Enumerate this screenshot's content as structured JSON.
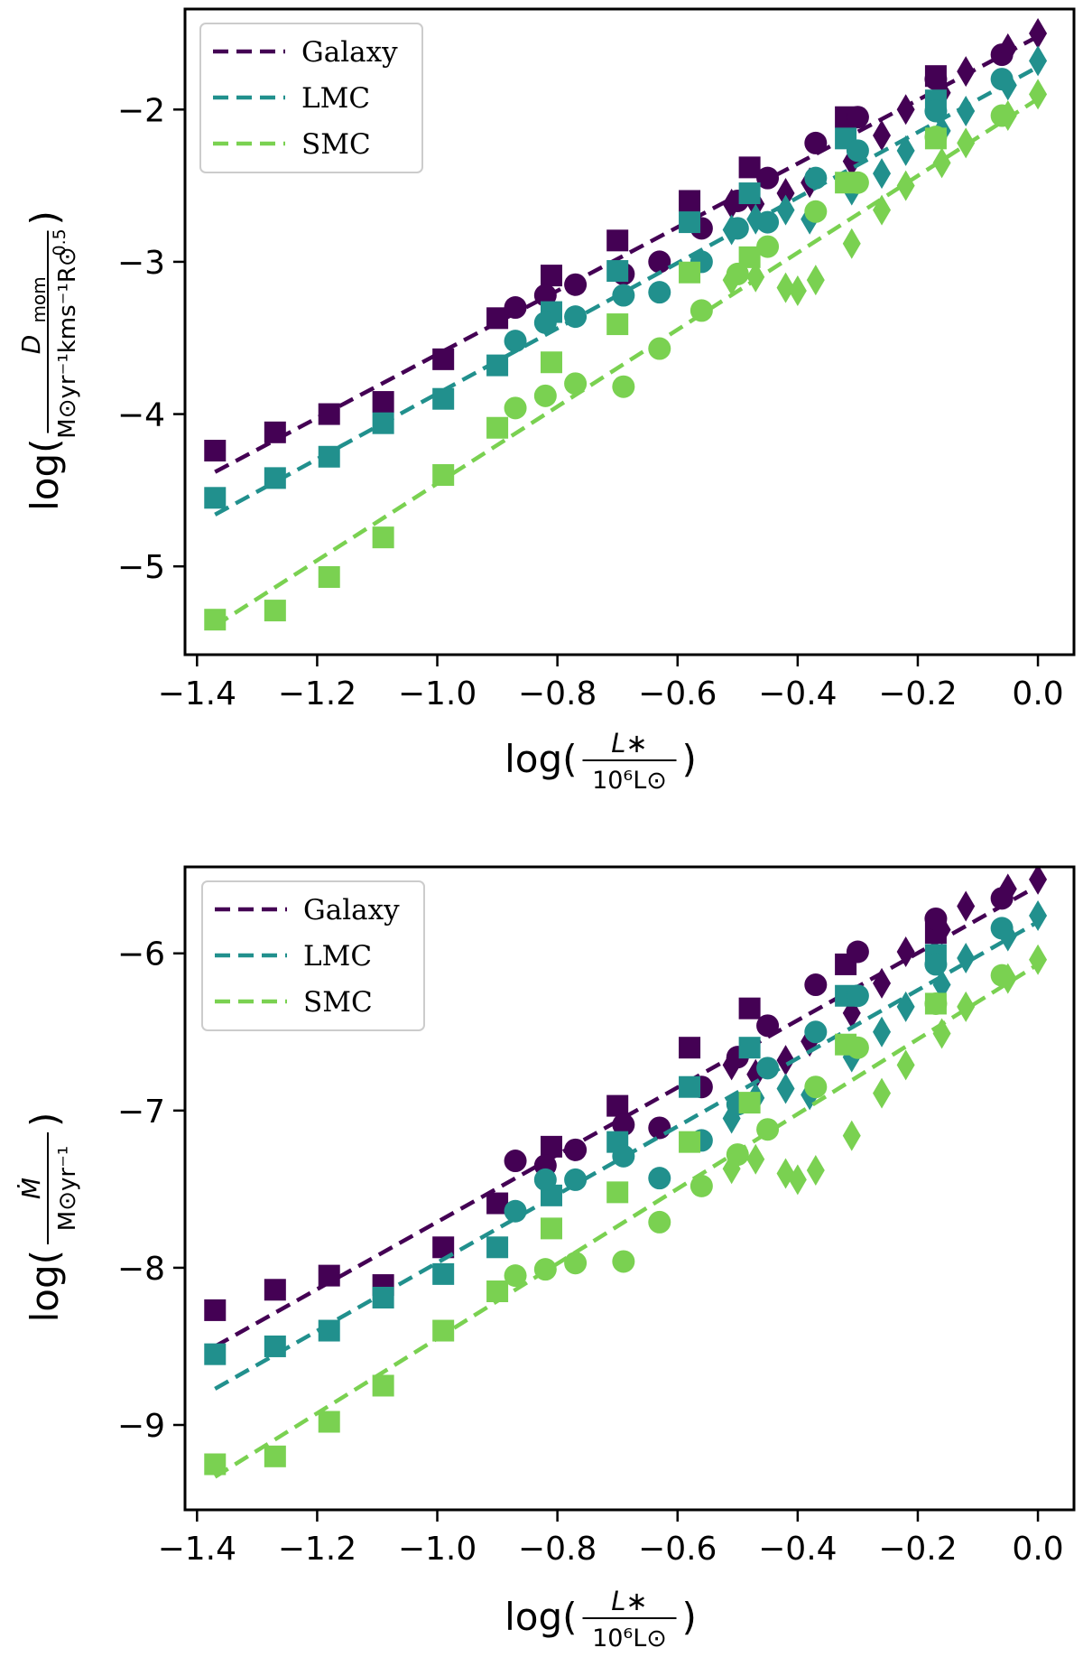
{
  "chart_data": [
    {
      "type": "scatter",
      "title": "",
      "xlabel": "log(L* / 10^6 L⊙)",
      "ylabel": "log(D_mom / M⊙yr^-1 kms^-1 R⊙^0.5)",
      "ylabel_parts": {
        "fn": "log(",
        "close": ")",
        "num": "D",
        "num_sub": "mom",
        "den": "M⊙yr⁻¹kms⁻¹R⊙",
        "den_sup": "0.5"
      },
      "xlabel_parts": {
        "fn": "log(",
        "close": ")",
        "num": "L∗",
        "den": "10⁶L⊙"
      },
      "xlim": [
        -1.42,
        0.06
      ],
      "ylim": [
        -5.58,
        -1.34
      ],
      "xticks": [
        -1.4,
        -1.2,
        -1.0,
        -0.8,
        -0.6,
        -0.4,
        -0.2,
        0.0
      ],
      "xtick_labels": [
        "−1.4",
        "−1.2",
        "−1.0",
        "−0.8",
        "−0.6",
        "−0.4",
        "−0.2",
        "0.0"
      ],
      "yticks": [
        -5,
        -4,
        -3,
        -2
      ],
      "ytick_labels": [
        "−5",
        "−4",
        "−3",
        "−2"
      ],
      "legend": {
        "position": "top-left",
        "entries": [
          "Galaxy",
          "LMC",
          "SMC"
        ]
      },
      "series": [
        {
          "name": "Galaxy",
          "color": "#440154",
          "fit": [
            [
              -1.37,
              -4.38
            ],
            [
              0.0,
              -1.52
            ]
          ],
          "squares": [
            [
              -1.37,
              -4.24
            ],
            [
              -1.27,
              -4.12
            ],
            [
              -1.18,
              -4.0
            ],
            [
              -1.09,
              -3.92
            ],
            [
              -0.99,
              -3.64
            ],
            [
              -0.9,
              -3.37
            ],
            [
              -0.81,
              -3.09
            ],
            [
              -0.7,
              -2.86
            ],
            [
              -0.58,
              -2.6
            ],
            [
              -0.48,
              -2.38
            ],
            [
              -0.32,
              -2.05
            ],
            [
              -0.17,
              -1.78
            ]
          ],
          "circles": [
            [
              -0.87,
              -3.3
            ],
            [
              -0.82,
              -3.22
            ],
            [
              -0.77,
              -3.15
            ],
            [
              -0.69,
              -3.08
            ],
            [
              -0.63,
              -3.0
            ],
            [
              -0.56,
              -2.78
            ],
            [
              -0.5,
              -2.6
            ],
            [
              -0.45,
              -2.45
            ],
            [
              -0.37,
              -2.22
            ],
            [
              -0.3,
              -2.05
            ],
            [
              -0.17,
              -1.8
            ],
            [
              -0.06,
              -1.64
            ]
          ],
          "diamonds": [
            [
              -0.51,
              -2.62
            ],
            [
              -0.47,
              -2.62
            ],
            [
              -0.42,
              -2.55
            ],
            [
              -0.38,
              -2.48
            ],
            [
              -0.31,
              -2.34
            ],
            [
              -0.26,
              -2.17
            ],
            [
              -0.22,
              -2.0
            ],
            [
              -0.16,
              -1.89
            ],
            [
              -0.12,
              -1.75
            ],
            [
              -0.05,
              -1.6
            ],
            [
              0.0,
              -1.5
            ]
          ]
        },
        {
          "name": "LMC",
          "color": "#21908d",
          "fit": [
            [
              -1.37,
              -4.66
            ],
            [
              0.0,
              -1.72
            ]
          ],
          "squares": [
            [
              -1.37,
              -4.55
            ],
            [
              -1.27,
              -4.42
            ],
            [
              -1.18,
              -4.28
            ],
            [
              -1.09,
              -4.06
            ],
            [
              -0.99,
              -3.9
            ],
            [
              -0.9,
              -3.68
            ],
            [
              -0.81,
              -3.33
            ],
            [
              -0.7,
              -3.06
            ],
            [
              -0.58,
              -2.74
            ],
            [
              -0.48,
              -2.55
            ],
            [
              -0.32,
              -2.19
            ],
            [
              -0.17,
              -1.94
            ]
          ],
          "circles": [
            [
              -0.87,
              -3.52
            ],
            [
              -0.82,
              -3.4
            ],
            [
              -0.77,
              -3.36
            ],
            [
              -0.69,
              -3.22
            ],
            [
              -0.63,
              -3.2
            ],
            [
              -0.56,
              -3.0
            ],
            [
              -0.5,
              -2.78
            ],
            [
              -0.45,
              -2.74
            ],
            [
              -0.37,
              -2.45
            ],
            [
              -0.3,
              -2.27
            ],
            [
              -0.17,
              -2.01
            ],
            [
              -0.06,
              -1.8
            ]
          ],
          "diamonds": [
            [
              -0.51,
              -2.79
            ],
            [
              -0.47,
              -2.72
            ],
            [
              -0.42,
              -2.66
            ],
            [
              -0.38,
              -2.72
            ],
            [
              -0.31,
              -2.53
            ],
            [
              -0.26,
              -2.42
            ],
            [
              -0.22,
              -2.27
            ],
            [
              -0.16,
              -2.14
            ],
            [
              -0.12,
              -2.01
            ],
            [
              -0.05,
              -1.84
            ],
            [
              0.0,
              -1.68
            ]
          ]
        },
        {
          "name": "SMC",
          "color": "#7ad151",
          "fit": [
            [
              -1.37,
              -5.39
            ],
            [
              0.0,
              -1.93
            ]
          ],
          "squares": [
            [
              -1.37,
              -5.35
            ],
            [
              -1.27,
              -5.29
            ],
            [
              -1.18,
              -5.07
            ],
            [
              -1.09,
              -4.81
            ],
            [
              -0.99,
              -4.4
            ],
            [
              -0.9,
              -4.09
            ],
            [
              -0.81,
              -3.66
            ],
            [
              -0.7,
              -3.41
            ],
            [
              -0.58,
              -3.07
            ],
            [
              -0.48,
              -2.97
            ],
            [
              -0.32,
              -2.48
            ],
            [
              -0.17,
              -2.19
            ]
          ],
          "circles": [
            [
              -0.87,
              -3.96
            ],
            [
              -0.82,
              -3.88
            ],
            [
              -0.77,
              -3.8
            ],
            [
              -0.69,
              -3.82
            ],
            [
              -0.63,
              -3.57
            ],
            [
              -0.56,
              -3.32
            ],
            [
              -0.5,
              -3.08
            ],
            [
              -0.45,
              -2.9
            ],
            [
              -0.37,
              -2.67
            ],
            [
              -0.3,
              -2.48
            ],
            [
              -0.17,
              -2.18
            ],
            [
              -0.06,
              -2.04
            ]
          ],
          "diamonds": [
            [
              -0.51,
              -3.12
            ],
            [
              -0.47,
              -3.1
            ],
            [
              -0.42,
              -3.17
            ],
            [
              -0.4,
              -3.19
            ],
            [
              -0.37,
              -3.12
            ],
            [
              -0.31,
              -2.88
            ],
            [
              -0.26,
              -2.66
            ],
            [
              -0.22,
              -2.5
            ],
            [
              -0.16,
              -2.35
            ],
            [
              -0.12,
              -2.22
            ],
            [
              -0.05,
              -2.04
            ],
            [
              0.0,
              -1.9
            ]
          ]
        }
      ]
    },
    {
      "type": "scatter",
      "title": "",
      "xlabel": "log(L* / 10^6 L⊙)",
      "ylabel": "log(Ṁ / M⊙yr^-1)",
      "ylabel_parts": {
        "fn": "log(",
        "close": ")",
        "num": "Ṁ",
        "den": "M⊙yr⁻¹"
      },
      "xlabel_parts": {
        "fn": "log(",
        "close": ")",
        "num": "L∗",
        "den": "10⁶L⊙"
      },
      "xlim": [
        -1.42,
        0.06
      ],
      "ylim": [
        -9.54,
        -5.45
      ],
      "xticks": [
        -1.4,
        -1.2,
        -1.0,
        -0.8,
        -0.6,
        -0.4,
        -0.2,
        0.0
      ],
      "xtick_labels": [
        "−1.4",
        "−1.2",
        "−1.0",
        "−0.8",
        "−0.6",
        "−0.4",
        "−0.2",
        "0.0"
      ],
      "yticks": [
        -9,
        -8,
        -7,
        -6
      ],
      "ytick_labels": [
        "−9",
        "−8",
        "−7",
        "−6"
      ],
      "legend": {
        "position": "top-left",
        "entries": [
          "Galaxy",
          "LMC",
          "SMC"
        ]
      },
      "series": [
        {
          "name": "Galaxy",
          "color": "#440154",
          "fit": [
            [
              -1.37,
              -8.5
            ],
            [
              0.0,
              -5.57
            ]
          ],
          "squares": [
            [
              -1.37,
              -8.27
            ],
            [
              -1.27,
              -8.14
            ],
            [
              -1.18,
              -8.05
            ],
            [
              -1.09,
              -8.11
            ],
            [
              -0.99,
              -7.87
            ],
            [
              -0.9,
              -7.59
            ],
            [
              -0.81,
              -7.23
            ],
            [
              -0.7,
              -6.97
            ],
            [
              -0.58,
              -6.6
            ],
            [
              -0.48,
              -6.35
            ],
            [
              -0.32,
              -6.07
            ],
            [
              -0.17,
              -5.87
            ]
          ],
          "circles": [
            [
              -0.87,
              -7.32
            ],
            [
              -0.82,
              -7.35
            ],
            [
              -0.77,
              -7.25
            ],
            [
              -0.69,
              -7.09
            ],
            [
              -0.63,
              -7.11
            ],
            [
              -0.56,
              -6.85
            ],
            [
              -0.5,
              -6.66
            ],
            [
              -0.45,
              -6.46
            ],
            [
              -0.37,
              -6.2
            ],
            [
              -0.3,
              -5.99
            ],
            [
              -0.17,
              -5.78
            ],
            [
              -0.06,
              -5.65
            ]
          ],
          "diamonds": [
            [
              -0.51,
              -6.71
            ],
            [
              -0.47,
              -6.77
            ],
            [
              -0.42,
              -6.68
            ],
            [
              -0.38,
              -6.56
            ],
            [
              -0.31,
              -6.38
            ],
            [
              -0.26,
              -6.19
            ],
            [
              -0.22,
              -5.99
            ],
            [
              -0.16,
              -5.85
            ],
            [
              -0.12,
              -5.7
            ],
            [
              -0.05,
              -5.59
            ],
            [
              0.0,
              -5.53
            ]
          ]
        },
        {
          "name": "LMC",
          "color": "#21908d",
          "fit": [
            [
              -1.37,
              -8.77
            ],
            [
              0.0,
              -5.8
            ]
          ],
          "squares": [
            [
              -1.37,
              -8.55
            ],
            [
              -1.27,
              -8.5
            ],
            [
              -1.18,
              -8.4
            ],
            [
              -1.09,
              -8.19
            ],
            [
              -0.99,
              -8.04
            ],
            [
              -0.9,
              -7.87
            ],
            [
              -0.81,
              -7.54
            ],
            [
              -0.7,
              -7.2
            ],
            [
              -0.58,
              -6.85
            ],
            [
              -0.48,
              -6.6
            ],
            [
              -0.32,
              -6.27
            ],
            [
              -0.17,
              -6.01
            ]
          ],
          "circles": [
            [
              -0.87,
              -7.64
            ],
            [
              -0.82,
              -7.44
            ],
            [
              -0.77,
              -7.44
            ],
            [
              -0.69,
              -7.29
            ],
            [
              -0.63,
              -7.43
            ],
            [
              -0.56,
              -7.19
            ],
            [
              -0.5,
              -6.96
            ],
            [
              -0.45,
              -6.73
            ],
            [
              -0.37,
              -6.5
            ],
            [
              -0.3,
              -6.27
            ],
            [
              -0.17,
              -6.07
            ],
            [
              -0.06,
              -5.84
            ]
          ],
          "diamonds": [
            [
              -0.51,
              -7.05
            ],
            [
              -0.47,
              -6.92
            ],
            [
              -0.42,
              -6.86
            ],
            [
              -0.38,
              -6.9
            ],
            [
              -0.31,
              -6.66
            ],
            [
              -0.26,
              -6.5
            ],
            [
              -0.22,
              -6.34
            ],
            [
              -0.16,
              -6.2
            ],
            [
              -0.12,
              -6.03
            ],
            [
              -0.05,
              -5.89
            ],
            [
              0.0,
              -5.76
            ]
          ]
        },
        {
          "name": "SMC",
          "color": "#7ad151",
          "fit": [
            [
              -1.37,
              -9.33
            ],
            [
              0.0,
              -6.07
            ]
          ],
          "squares": [
            [
              -1.37,
              -9.25
            ],
            [
              -1.27,
              -9.2
            ],
            [
              -1.18,
              -8.98
            ],
            [
              -1.09,
              -8.75
            ],
            [
              -0.99,
              -8.4
            ],
            [
              -0.9,
              -8.15
            ],
            [
              -0.81,
              -7.75
            ],
            [
              -0.7,
              -7.52
            ],
            [
              -0.58,
              -7.2
            ],
            [
              -0.48,
              -6.95
            ],
            [
              -0.32,
              -6.58
            ],
            [
              -0.17,
              -6.32
            ]
          ],
          "circles": [
            [
              -0.87,
              -8.05
            ],
            [
              -0.82,
              -8.01
            ],
            [
              -0.77,
              -7.97
            ],
            [
              -0.69,
              -7.96
            ],
            [
              -0.63,
              -7.71
            ],
            [
              -0.56,
              -7.48
            ],
            [
              -0.5,
              -7.28
            ],
            [
              -0.45,
              -7.12
            ],
            [
              -0.37,
              -6.85
            ],
            [
              -0.3,
              -6.6
            ],
            [
              -0.17,
              -6.32
            ],
            [
              -0.06,
              -6.14
            ]
          ],
          "diamonds": [
            [
              -0.51,
              -7.37
            ],
            [
              -0.47,
              -7.31
            ],
            [
              -0.42,
              -7.4
            ],
            [
              -0.4,
              -7.44
            ],
            [
              -0.37,
              -7.38
            ],
            [
              -0.31,
              -7.16
            ],
            [
              -0.26,
              -6.89
            ],
            [
              -0.22,
              -6.71
            ],
            [
              -0.16,
              -6.51
            ],
            [
              -0.12,
              -6.34
            ],
            [
              -0.05,
              -6.16
            ],
            [
              0.0,
              -6.04
            ]
          ]
        }
      ]
    }
  ]
}
